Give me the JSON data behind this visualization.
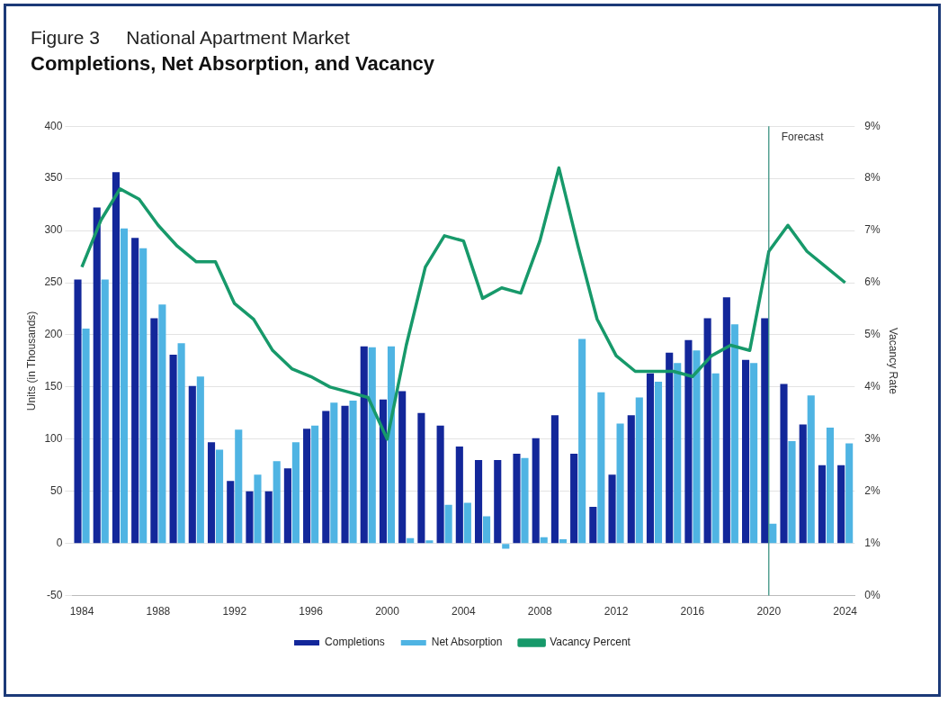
{
  "chart_data": {
    "type": "bar",
    "subtitle": "Figure 3     National Apartment Market",
    "title": "Completions, Net Absorption, and Vacancy",
    "categories": [
      "1984",
      null,
      null,
      null,
      "1988",
      null,
      null,
      null,
      "1992",
      null,
      null,
      null,
      "1996",
      null,
      null,
      null,
      "2000",
      null,
      null,
      null,
      "2004",
      null,
      null,
      null,
      "2008",
      null,
      null,
      null,
      "2012",
      null,
      null,
      null,
      "2016",
      null,
      null,
      null,
      "2020",
      null,
      null,
      null,
      "2024"
    ],
    "series": [
      {
        "name": "Completions",
        "color": "#13279a",
        "values": [
          253,
          322,
          356,
          293,
          216,
          181,
          151,
          97,
          60,
          50,
          50,
          72,
          110,
          127,
          132,
          189,
          138,
          146,
          125,
          113,
          93,
          80,
          80,
          86,
          101,
          123,
          86,
          35,
          66,
          123,
          163,
          183,
          195,
          216,
          236,
          176,
          216,
          153,
          114,
          75,
          75
        ]
      },
      {
        "name": "Net Absorption",
        "color": "#4fb4e3",
        "values": [
          206,
          253,
          302,
          283,
          229,
          192,
          160,
          90,
          109,
          66,
          79,
          97,
          113,
          135,
          137,
          188,
          189,
          5,
          3,
          37,
          39,
          26,
          -5,
          82,
          6,
          4,
          196,
          145,
          115,
          140,
          155,
          173,
          185,
          163,
          210,
          173,
          19,
          98,
          142,
          111,
          96
        ]
      },
      {
        "name": "Vacancy Percent",
        "type": "line",
        "axis": "y2",
        "color": "#17996a",
        "values": [
          6.3,
          7.2,
          7.8,
          7.6,
          7.1,
          6.7,
          6.4,
          6.4,
          5.6,
          5.3,
          4.7,
          4.35,
          4.2,
          4.0,
          3.9,
          3.8,
          3.0,
          4.8,
          6.3,
          6.9,
          6.8,
          5.7,
          5.9,
          5.8,
          6.8,
          8.2,
          6.7,
          5.3,
          4.6,
          4.3,
          4.3,
          4.3,
          4.2,
          4.6,
          4.8,
          4.7,
          6.6,
          7.1,
          6.6,
          6.3,
          6.0
        ]
      }
    ],
    "ylabel": "Units (in Thousands)",
    "y2label": "Vacancy Rate",
    "ylim": [
      -50,
      400
    ],
    "yticks": [
      -50,
      0,
      50,
      100,
      150,
      200,
      250,
      300,
      350,
      400
    ],
    "y2lim": [
      0,
      9
    ],
    "y2ticks": [
      {
        "value": 0,
        "label": "0%"
      },
      {
        "value": 1,
        "label": "1%"
      },
      {
        "value": 2,
        "label": "2%"
      },
      {
        "value": 3,
        "label": "3%"
      },
      {
        "value": 4,
        "label": "4%"
      },
      {
        "value": 5,
        "label": "5%"
      },
      {
        "value": 6,
        "label": "6%"
      },
      {
        "value": 7,
        "label": "7%"
      },
      {
        "value": 8,
        "label": "8%"
      },
      {
        "value": 9,
        "label": "9%"
      }
    ],
    "ref_lines": [
      {
        "axis": "x",
        "value": "2020",
        "label": "Forecast",
        "color": "#2e8b7a"
      }
    ],
    "grid": "y",
    "legend": "bottom",
    "marker": "none",
    "line_style": "solid"
  }
}
